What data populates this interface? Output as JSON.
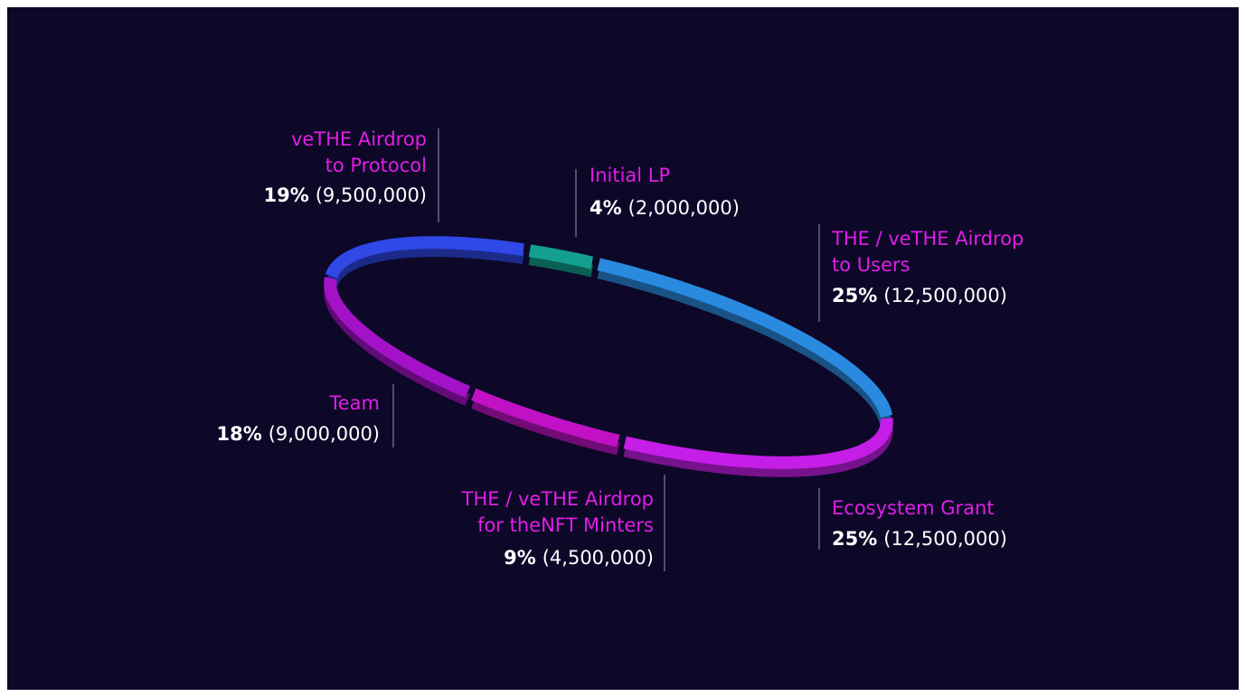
{
  "chart_data": {
    "type": "ring",
    "categories": [
      [
        "veTHE Airdrop",
        "to Protocol"
      ],
      [
        "Initial LP"
      ],
      [
        "THE / veTHE Airdrop",
        "to Users"
      ],
      [
        "Ecosystem Grant"
      ],
      [
        "THE / veTHE Airdrop",
        "for theNFT Minters"
      ],
      [
        "Team"
      ]
    ],
    "values": [
      19,
      4,
      25,
      25,
      9,
      18
    ],
    "value_labels": [
      "19%",
      "4%",
      "25%",
      "25%",
      "9%",
      "18%"
    ],
    "amounts": [
      9500000,
      2000000,
      12500000,
      12500000,
      4500000,
      9000000
    ],
    "amount_labels": [
      "(9,500,000)",
      "(2,000,000)",
      "(12,500,000)",
      "(12,500,000)",
      "(4,500,000)",
      "(9,000,000)"
    ],
    "colors": [
      "#2f48e6",
      "#13a08e",
      "#2a8ae0",
      "#c41ee8",
      "#c012c4",
      "#a412c8"
    ]
  }
}
